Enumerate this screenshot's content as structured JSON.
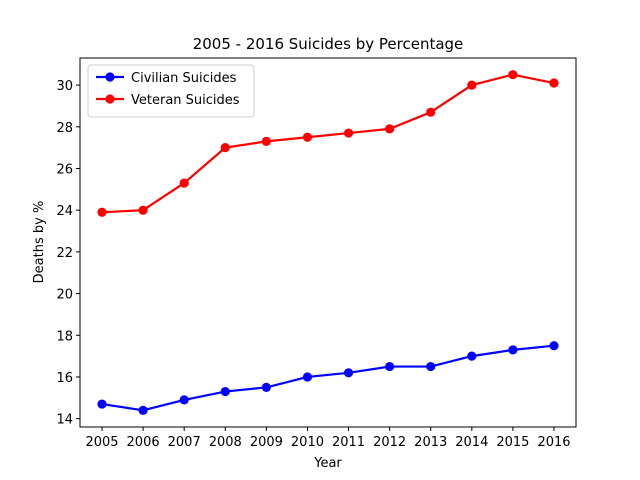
{
  "chart_data": {
    "type": "line",
    "title": "2005 - 2016 Suicides by Percentage",
    "xlabel": "Year",
    "ylabel": "Deaths by %",
    "x": [
      "2005",
      "2006",
      "2007",
      "2008",
      "2009",
      "2010",
      "2011",
      "2012",
      "2013",
      "2014",
      "2015",
      "2016"
    ],
    "ylim": [
      13.6,
      31.3
    ],
    "yticks": [
      14,
      16,
      18,
      20,
      22,
      24,
      26,
      28,
      30
    ],
    "grid": false,
    "legend_position": "upper-left",
    "series": [
      {
        "name": "Civilian Suicides",
        "color": "#0000ff",
        "marker": "circle",
        "values": [
          14.7,
          14.4,
          14.9,
          15.3,
          15.5,
          16.0,
          16.2,
          16.5,
          16.5,
          17.0,
          17.3,
          17.5
        ]
      },
      {
        "name": "Veteran Suicides",
        "color": "#ff0000",
        "marker": "circle",
        "values": [
          23.9,
          24.0,
          25.3,
          27.0,
          27.3,
          27.5,
          27.7,
          27.9,
          28.7,
          30.0,
          30.5,
          30.1
        ]
      }
    ]
  }
}
